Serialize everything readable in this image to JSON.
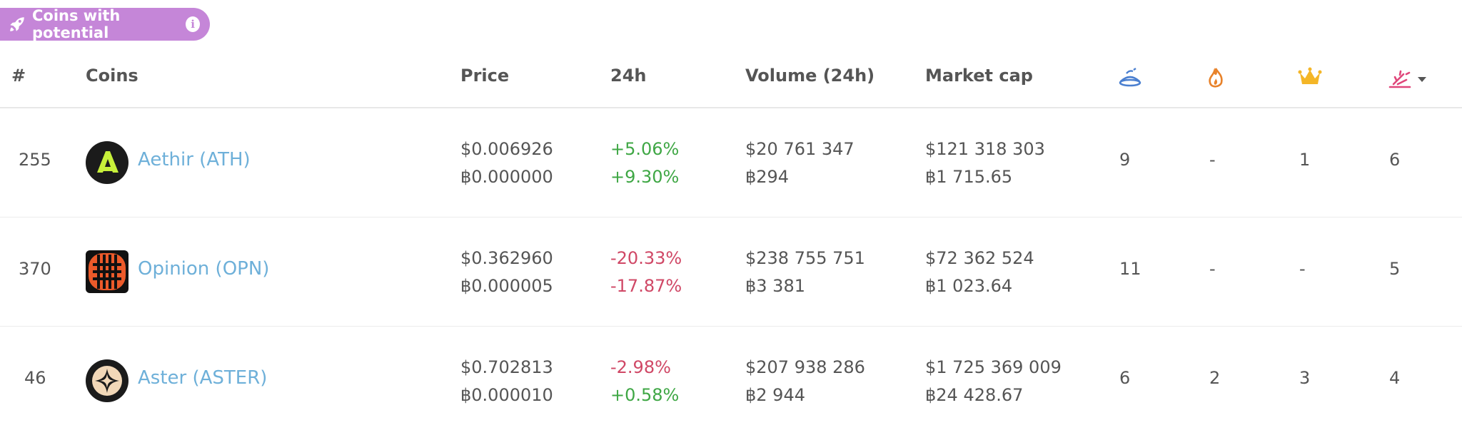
{
  "badge": {
    "label": "Coins with potential",
    "info_glyph": "i",
    "color": "#c586d8"
  },
  "table": {
    "headers": {
      "rank": "#",
      "coins": "Coins",
      "price": "Price",
      "change": "24h",
      "volume": "Volume (24h)",
      "market_cap": "Market cap"
    },
    "icon_headers": [
      "dish-icon",
      "fire-icon",
      "crown-icon",
      "sparkle-icon"
    ],
    "sort_indicator": "sort-down-caret-icon",
    "rows": [
      {
        "rank": "255",
        "name": "Aethir (ATH)",
        "price_usd": "$0.006926",
        "price_btc": "฿0.000000",
        "change_usd": "+5.06%",
        "change_btc": "+9.30%",
        "change_usd_dir": "up",
        "change_btc_dir": "up",
        "volume_usd": "$20 761 347",
        "volume_btc": "฿294",
        "mcap_usd": "$121 318 303",
        "mcap_btc": "฿1 715.65",
        "c1": "9",
        "c2": "-",
        "c3": "1",
        "c4": "6"
      },
      {
        "rank": "370",
        "name": "Opinion (OPN)",
        "price_usd": "$0.362960",
        "price_btc": "฿0.000005",
        "change_usd": "-20.33%",
        "change_btc": "-17.87%",
        "change_usd_dir": "down",
        "change_btc_dir": "down",
        "volume_usd": "$238 755 751",
        "volume_btc": "฿3 381",
        "mcap_usd": "$72 362 524",
        "mcap_btc": "฿1 023.64",
        "c1": "11",
        "c2": "-",
        "c3": "-",
        "c4": "5"
      },
      {
        "rank": "46",
        "name": "Aster (ASTER)",
        "price_usd": "$0.702813",
        "price_btc": "฿0.000010",
        "change_usd": "-2.98%",
        "change_btc": "+0.58%",
        "change_usd_dir": "down",
        "change_btc_dir": "up",
        "volume_usd": "$207 938 286",
        "volume_btc": "฿2 944",
        "mcap_usd": "$1 725 369 009",
        "mcap_btc": "฿24 428.67",
        "c1": "6",
        "c2": "2",
        "c3": "3",
        "c4": "4"
      }
    ]
  },
  "colors": {
    "positive": "#3fa745",
    "negative": "#d04866",
    "link": "#6eb0d9"
  }
}
